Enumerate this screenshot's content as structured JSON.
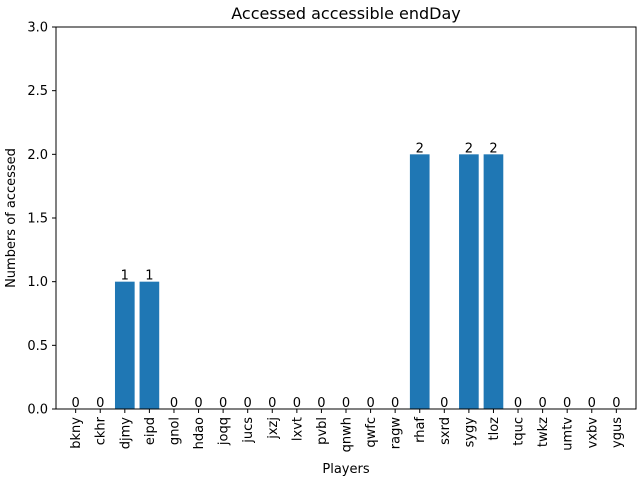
{
  "chart_data": {
    "type": "bar",
    "title": "Accessed accessible endDay",
    "xlabel": "Players",
    "ylabel": "Numbers of accessed",
    "categories": [
      "bkny",
      "ckhr",
      "djmy",
      "eipd",
      "gnol",
      "hdao",
      "joqq",
      "jucs",
      "jxzj",
      "lxvt",
      "pvbl",
      "qnwh",
      "qwfc",
      "ragw",
      "rhaf",
      "sxrd",
      "sygy",
      "tloz",
      "tquc",
      "twkz",
      "umtv",
      "vxbv",
      "ygus"
    ],
    "values": [
      0,
      0,
      1,
      1,
      0,
      0,
      0,
      0,
      0,
      0,
      0,
      0,
      0,
      0,
      2,
      0,
      2,
      2,
      0,
      0,
      0,
      0,
      0
    ],
    "data_labels": [
      "0",
      "0",
      "1",
      "1",
      "0",
      "0",
      "0",
      "0",
      "0",
      "0",
      "0",
      "0",
      "0",
      "0",
      "2",
      "0",
      "2",
      "2",
      "0",
      "0",
      "0",
      "0",
      "0"
    ],
    "ylim": [
      0,
      3.0
    ],
    "yticks": [
      0.0,
      0.5,
      1.0,
      1.5,
      2.0,
      2.5,
      3.0
    ],
    "ytick_labels": [
      "0.0",
      "0.5",
      "1.0",
      "1.5",
      "2.0",
      "2.5",
      "3.0"
    ],
    "grid": false,
    "bar_color": "#1f77b4"
  }
}
